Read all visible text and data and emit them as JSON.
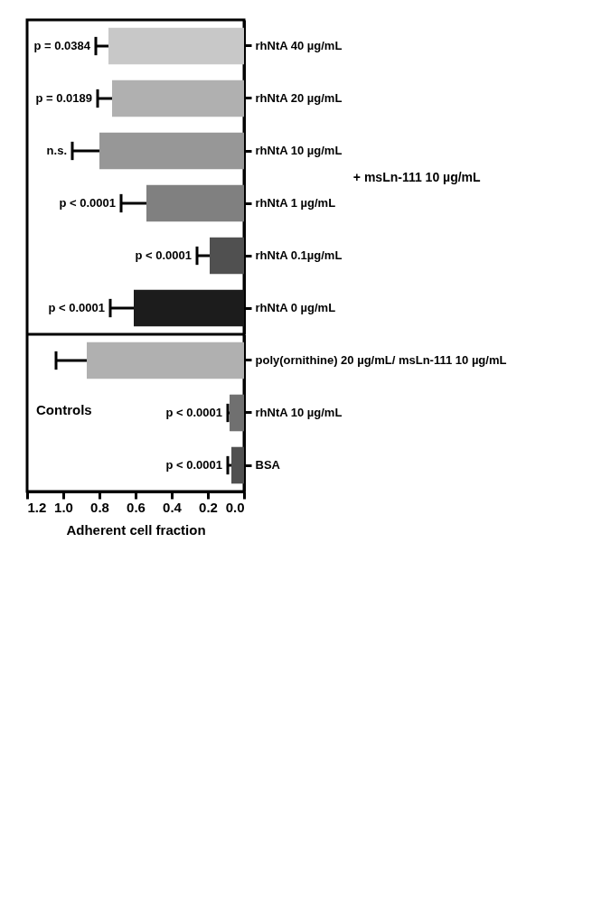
{
  "chart_data": [
    {
      "type": "bar",
      "orientation": "horizontal",
      "categories": [
        "rhNtA 40 µg/mL",
        "rhNtA 20 µg/mL",
        "rhNtA 10 µg/mL",
        "rhNtA 1 µg/mL",
        "rhNtA 0.1µg/mL",
        "rhNtA 0 µg/mL"
      ],
      "values": [
        0.75,
        0.73,
        0.8,
        0.54,
        0.19,
        0.61
      ],
      "colors": [
        "#c8c8c8",
        "#b0b0b0",
        "#979797",
        "#808080",
        "#505050",
        "#1c1c1c"
      ],
      "errors": [
        [
          0.75,
          0.82
        ],
        [
          0.73,
          0.81
        ],
        [
          0.8,
          0.95
        ],
        [
          0.54,
          0.68
        ],
        [
          0.19,
          0.26
        ],
        [
          0.61,
          0.74
        ]
      ],
      "xlim": [
        1.2,
        0
      ],
      "ylabel": "+ msLn-111 10 µg/mL",
      "tick_labels": "y",
      "annotations": [
        {
          "text": "p = 0.0384",
          "x": 0.82,
          "y": "rhNtA 40 µg/mL"
        },
        {
          "text": "p = 0.0189",
          "x": 0.81,
          "y": "rhNtA 20 µg/mL"
        },
        {
          "text": "n.s.",
          "x": 0.95,
          "y": "rhNtA 10 µg/mL"
        },
        {
          "text": "p < 0.0001",
          "x": 0.68,
          "y": "rhNtA 1 µg/mL"
        },
        {
          "text": "p < 0.0001",
          "x": 0.26,
          "y": "rhNtA 0.1µg/mL"
        },
        {
          "text": "p < 0.0001",
          "x": 0.74,
          "y": "rhNtA 0 µg/mL"
        }
      ]
    },
    {
      "type": "bar",
      "orientation": "horizontal",
      "categories": [
        "poly(ornithine) 20 µg/mL/ msLn-111 10 µg/mL",
        "rhNtA 10 µg/mL",
        "BSA"
      ],
      "values": [
        0.87,
        0.08,
        0.07
      ],
      "colors": [
        "#b0b0b0",
        "#707070",
        "#505050"
      ],
      "errors": [
        [
          0.87,
          1.04
        ],
        [
          0.08,
          0.09
        ],
        [
          0.07,
          0.09
        ]
      ],
      "xlim": [
        1.2,
        0
      ],
      "xticks": [
        {
          "value": 1.2,
          "label": "1.2"
        },
        {
          "value": 1.0,
          "label": "1.0"
        },
        {
          "value": 0.8,
          "label": "0.8"
        },
        {
          "value": 0.6,
          "label": "0.6"
        },
        {
          "value": 0.4,
          "label": "0.4"
        },
        {
          "value": 0.2,
          "label": "0.2"
        },
        {
          "value": 0,
          "label": "0.0"
        }
      ],
      "xlabel": "Adherent cell fraction",
      "annotations": [
        "Controls",
        {
          "text": "p < 0.0001",
          "x": 0.09,
          "y": "rhNtA 10 µg/mL"
        },
        {
          "text": "p < 0.0001",
          "x": 0.09,
          "y": "BSA"
        }
      ]
    }
  ]
}
